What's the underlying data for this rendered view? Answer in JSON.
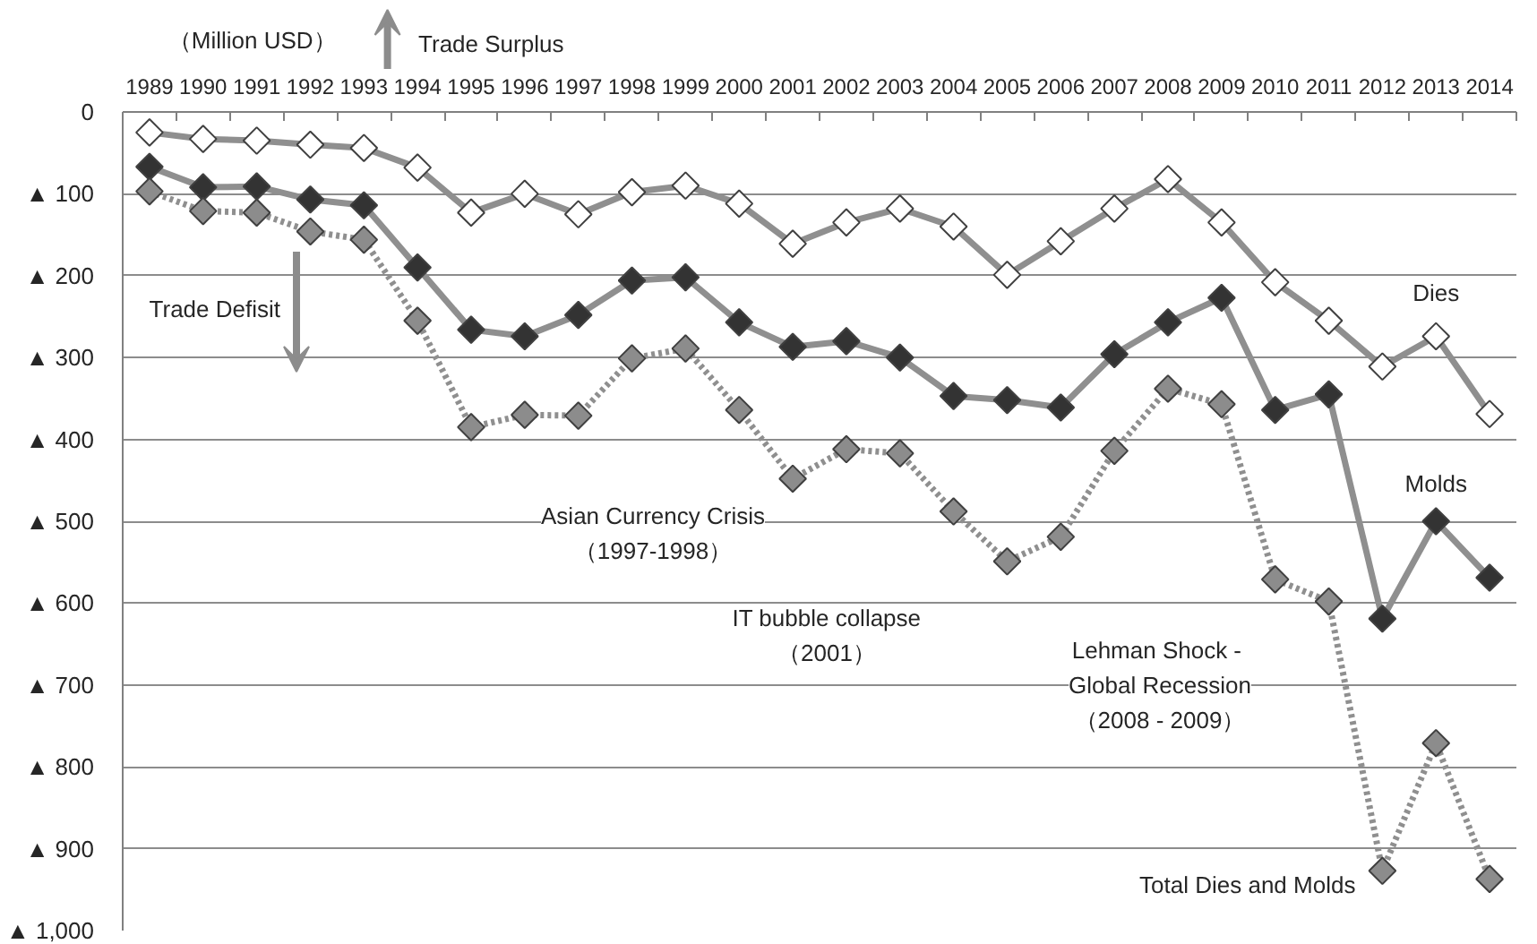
{
  "chart_data": {
    "type": "line",
    "ylabel": "（Million USD）",
    "categories": [
      "1989",
      "1990",
      "1991",
      "1992",
      "1993",
      "1994",
      "1995",
      "1996",
      "1997",
      "1998",
      "1999",
      "2000",
      "2001",
      "2002",
      "2003",
      "2004",
      "2005",
      "2006",
      "2007",
      "2008",
      "2009",
      "2010",
      "2011",
      "2012",
      "2013",
      "2014"
    ],
    "series": [
      {
        "name": "Dies",
        "color": "#ffffff",
        "values": [
          -25,
          -33,
          -35,
          -40,
          -44,
          -68,
          -123,
          -100,
          -125,
          -98,
          -90,
          -112,
          -161,
          -135,
          -118,
          -140,
          -199,
          -158,
          -118,
          -82,
          -135,
          -208,
          -255,
          -311,
          -274,
          -369
        ]
      },
      {
        "name": "Molds",
        "color": "#333333",
        "values": [
          -67,
          -92,
          -91,
          -107,
          -114,
          -190,
          -266,
          -274,
          -248,
          -206,
          -202,
          -257,
          -287,
          -280,
          -300,
          -347,
          -352,
          -361,
          -296,
          -257,
          -227,
          -364,
          -345,
          -619,
          -500,
          -569
        ]
      },
      {
        "name": "Total Dies and Molds",
        "color": "#8c8c8c",
        "line_style": "dotted",
        "values": [
          -97,
          -121,
          -123,
          -146,
          -156,
          -255,
          -385,
          -370,
          -371,
          -301,
          -289,
          -364,
          -448,
          -412,
          -417,
          -488,
          -549,
          -519,
          -414,
          -338,
          -357,
          -571,
          -598,
          -927,
          -771,
          -937
        ]
      }
    ],
    "ylim": [
      -1000,
      0
    ],
    "yticks": [
      0,
      {
        "value": -100,
        "label": "▲ 100"
      },
      {
        "value": -200,
        "label": "▲ 200"
      },
      {
        "value": -300,
        "label": "▲ 300"
      },
      {
        "value": -400,
        "label": "▲ 400"
      },
      {
        "value": -500,
        "label": "▲ 500"
      },
      {
        "value": -600,
        "label": "▲ 600"
      },
      {
        "value": -700,
        "label": "▲ 700"
      },
      {
        "value": -800,
        "label": "▲ 800"
      },
      {
        "value": -900,
        "label": "▲ 900"
      },
      {
        "value": -1000,
        "label": "▲ 1,000"
      }
    ],
    "grid": "y",
    "marker": "diamond",
    "line_style": "solid",
    "annotations": [
      "Trade Surplus",
      "Trade Defisit",
      "Asian Currency Crisis\n（1997-1998）",
      "IT bubble collapse\n（2001）",
      "Lehman Shock  -\nGlobal Recession\n（2008 - 2009）"
    ]
  }
}
